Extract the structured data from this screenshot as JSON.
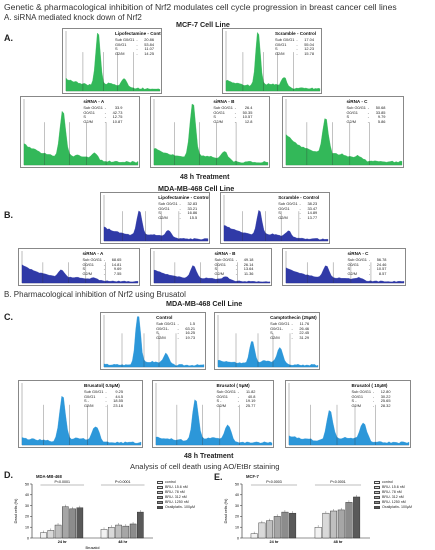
{
  "figure": {
    "title": "Genetic & pharmacological inhibition of Nrf2 modulates cell cycle progression in breast cancer cell lines",
    "section_a": "A. siRNA mediated knock down of Nrf2",
    "section_b": "B. Pharmacological inhibition of Nrf2 using Brusatol",
    "analysis_title": "Analysis of cell death using AO/EtBr staining"
  },
  "blocks": {
    "A": {
      "letter": "A.",
      "cell_line": "MCF-7 Cell Line",
      "treatment": "48 h Treatment"
    },
    "B": {
      "letter": "B.",
      "cell_line": "MDA-MB-468 Cell Line"
    },
    "C": {
      "letter": "C.",
      "cell_line": "MDA-MB-468 Cell Line",
      "treatment": "48 h Treatment"
    },
    "D": {
      "letter": "D.",
      "chart_title": "MDA-MB-468"
    },
    "E": {
      "letter": "E.",
      "chart_title": "MCF-7"
    }
  },
  "flow_panels": {
    "A": [
      {
        "title": "Lipofectamine - Control",
        "color": "#22b24c",
        "stats": [
          {
            "k": "Sub G0/G1",
            "v": "20.86"
          },
          {
            "k": "G0/G1",
            "v": "53.84"
          },
          {
            "k": "S",
            "v": "11.07"
          },
          {
            "k": "G2/M",
            "v": "14.25"
          }
        ]
      },
      {
        "title": "Scramble - Control",
        "color": "#22b24c",
        "stats": [
          {
            "k": "Sub G0/G1",
            "v": "17.04"
          },
          {
            "k": "G0/G1",
            "v": "55.04"
          },
          {
            "k": "S",
            "v": "12.23"
          },
          {
            "k": "G2/M",
            "v": "15.78"
          }
        ]
      },
      {
        "title": "siRNA - A",
        "color": "#22b24c",
        "stats": [
          {
            "k": "Sub G0/G1",
            "v": "33.9"
          },
          {
            "k": "G0/G1",
            "v": "42.73"
          },
          {
            "k": "S",
            "v": "12.75"
          },
          {
            "k": "G2/M",
            "v": "10.87"
          }
        ]
      },
      {
        "title": "siRNA - B",
        "color": "#22b24c",
        "stats": [
          {
            "k": "Sub G0/G1",
            "v": "26.4"
          },
          {
            "k": "G0/G1",
            "v": "50.35"
          },
          {
            "k": "S",
            "v": "10.57"
          },
          {
            "k": "G2/M",
            "v": "12.8"
          }
        ]
      },
      {
        "title": "siRNA - C",
        "color": "#22b24c",
        "stats": [
          {
            "k": "Sub G0/G1",
            "v": "50.68"
          },
          {
            "k": "G0/G1",
            "v": "33.85"
          },
          {
            "k": "S",
            "v": "9.79"
          },
          {
            "k": "G2/M",
            "v": "5.86"
          }
        ]
      }
    ],
    "B": [
      {
        "title": "Lipofectamine - Control",
        "color": "#1f2aa0",
        "stats": [
          {
            "k": "Sub G0/G1",
            "v": "32.83"
          },
          {
            "k": "G0/G1",
            "v": "33.21"
          },
          {
            "k": "S",
            "v": "16.86"
          },
          {
            "k": "G2/M",
            "v": "15.5"
          }
        ]
      },
      {
        "title": "Scramble - Control",
        "color": "#1f2aa0",
        "stats": [
          {
            "k": "Sub G0/G1",
            "v": "38.23"
          },
          {
            "k": "G0/G1",
            "v": "33.47"
          },
          {
            "k": "S",
            "v": "14.89"
          },
          {
            "k": "G2/M",
            "v": "13.77"
          }
        ]
      },
      {
        "title": "siRNA - A",
        "color": "#1f2aa0",
        "stats": [
          {
            "k": "Sub G0/G1",
            "v": "68.65"
          },
          {
            "k": "G0/G1",
            "v": "14.81"
          },
          {
            "k": "S",
            "v": "9.69"
          },
          {
            "k": "G2/M",
            "v": "7.55"
          }
        ]
      },
      {
        "title": "siRNA - B",
        "color": "#1f2aa0",
        "stats": [
          {
            "k": "Sub G0/G1",
            "v": "49.18"
          },
          {
            "k": "G0/G1",
            "v": "26.14"
          },
          {
            "k": "S",
            "v": "13.64"
          },
          {
            "k": "G2/M",
            "v": "11.36"
          }
        ]
      },
      {
        "title": "siRNA - C",
        "color": "#1f2aa0",
        "stats": [
          {
            "k": "Sub G0/G1",
            "v": "56.78"
          },
          {
            "k": "G0/G1",
            "v": "24.46"
          },
          {
            "k": "S",
            "v": "10.57"
          },
          {
            "k": "G2/M",
            "v": "8.57"
          }
        ]
      }
    ],
    "C": [
      {
        "title": "Control",
        "color": "#1b8fd6",
        "stats": [
          {
            "k": "Sub G0/G1",
            "v": "1.5"
          },
          {
            "k": "G0/G1-",
            "v": "63.21"
          },
          {
            "k": "S",
            "v": "16.25"
          },
          {
            "k": "G2/M",
            "v": "19.73"
          }
        ]
      },
      {
        "title": "Camptothecin (25µM)",
        "color": "#1b8fd6",
        "stats": [
          {
            "k": "Sub G0/G1",
            "v": "11.76"
          },
          {
            "k": "G0/G1-",
            "v": "26.46"
          },
          {
            "k": "S",
            "v": "22.45"
          },
          {
            "k": "G2/M",
            "v": "31.29"
          }
        ]
      },
      {
        "title": "Brusatol( 0.5µM)",
        "color": "#1b8fd6",
        "stats": [
          {
            "k": "Sub G0/G1",
            "v": "9.25"
          },
          {
            "k": "G0/G1",
            "v": "44.5"
          },
          {
            "k": "S -",
            "v": "18.55"
          },
          {
            "k": "G2/M",
            "v": "23.16"
          }
        ]
      },
      {
        "title": "Brusatol ( 5µM)",
        "color": "#1b8fd6",
        "stats": [
          {
            "k": "Sub G0/G1",
            "v": "11.82"
          },
          {
            "k": "G0/G1",
            "v": "40.8"
          },
          {
            "k": "S -",
            "v": "19.19"
          },
          {
            "k": "G2/M",
            "v": "25.77"
          }
        ]
      },
      {
        "title": "Brusatol ( 10µM)",
        "color": "#1b8fd6",
        "stats": [
          {
            "k": "Sub G0/G1",
            "v": "12.80"
          },
          {
            "k": "G0/G1",
            "v": "30.22"
          },
          {
            "k": "S -",
            "v": "25.65"
          },
          {
            "k": "G2/M",
            "v": "28.32"
          }
        ]
      }
    ]
  },
  "chart_data": [
    {
      "type": "bar",
      "title": "MDA-MB-468",
      "ylabel": "Dead cells (%)",
      "xlabel": "Brusatol",
      "ylim": [
        0,
        50
      ],
      "yticks": [
        "0",
        "10",
        "20",
        "30",
        "40",
        "50"
      ],
      "groups": [
        "24 hr",
        "48 hr"
      ],
      "pvalues": [
        "P<0.0001",
        "P<0.0001"
      ],
      "series": [
        {
          "name": "control",
          "values": [
            5,
            8
          ]
        },
        {
          "name": "BRU- 15.6 nM",
          "values": [
            7,
            10
          ]
        },
        {
          "name": "BRU- 78 nM",
          "values": [
            12,
            12
          ]
        },
        {
          "name": "BRU- 312 nM",
          "values": [
            29,
            11
          ]
        },
        {
          "name": "BRU- 1250 nM",
          "values": [
            27,
            13
          ]
        },
        {
          "name": "Oxaliplatin- 100µM",
          "values": [
            28,
            24
          ]
        }
      ],
      "colors": [
        "#f2f2f2",
        "#d9d9d9",
        "#bfbfbf",
        "#a6a6a6",
        "#8c8c8c",
        "#595959"
      ]
    },
    {
      "type": "bar",
      "title": "MCF-7",
      "ylabel": "Dead cells (%)",
      "xlabel": "",
      "ylim": [
        0,
        50
      ],
      "yticks": [
        "0",
        "10",
        "20",
        "30",
        "40",
        "50"
      ],
      "groups": [
        "24 hr",
        "48 hr"
      ],
      "pvalues": [
        "P<0.0003",
        "P<0.0001"
      ],
      "series": [
        {
          "name": "control",
          "values": [
            4,
            10
          ]
        },
        {
          "name": "BRU- 15.6 nM",
          "values": [
            14,
            23
          ]
        },
        {
          "name": "BRU- 78 nM",
          "values": [
            16,
            25
          ]
        },
        {
          "name": "BRU- 312 nM",
          "values": [
            20,
            26
          ]
        },
        {
          "name": "BRU- 1250 nM",
          "values": [
            24,
            33
          ]
        },
        {
          "name": "Oxaliplatin- 100µM",
          "values": [
            23,
            38
          ]
        }
      ],
      "colors": [
        "#f2f2f2",
        "#d9d9d9",
        "#bfbfbf",
        "#a6a6a6",
        "#8c8c8c",
        "#595959"
      ]
    }
  ]
}
